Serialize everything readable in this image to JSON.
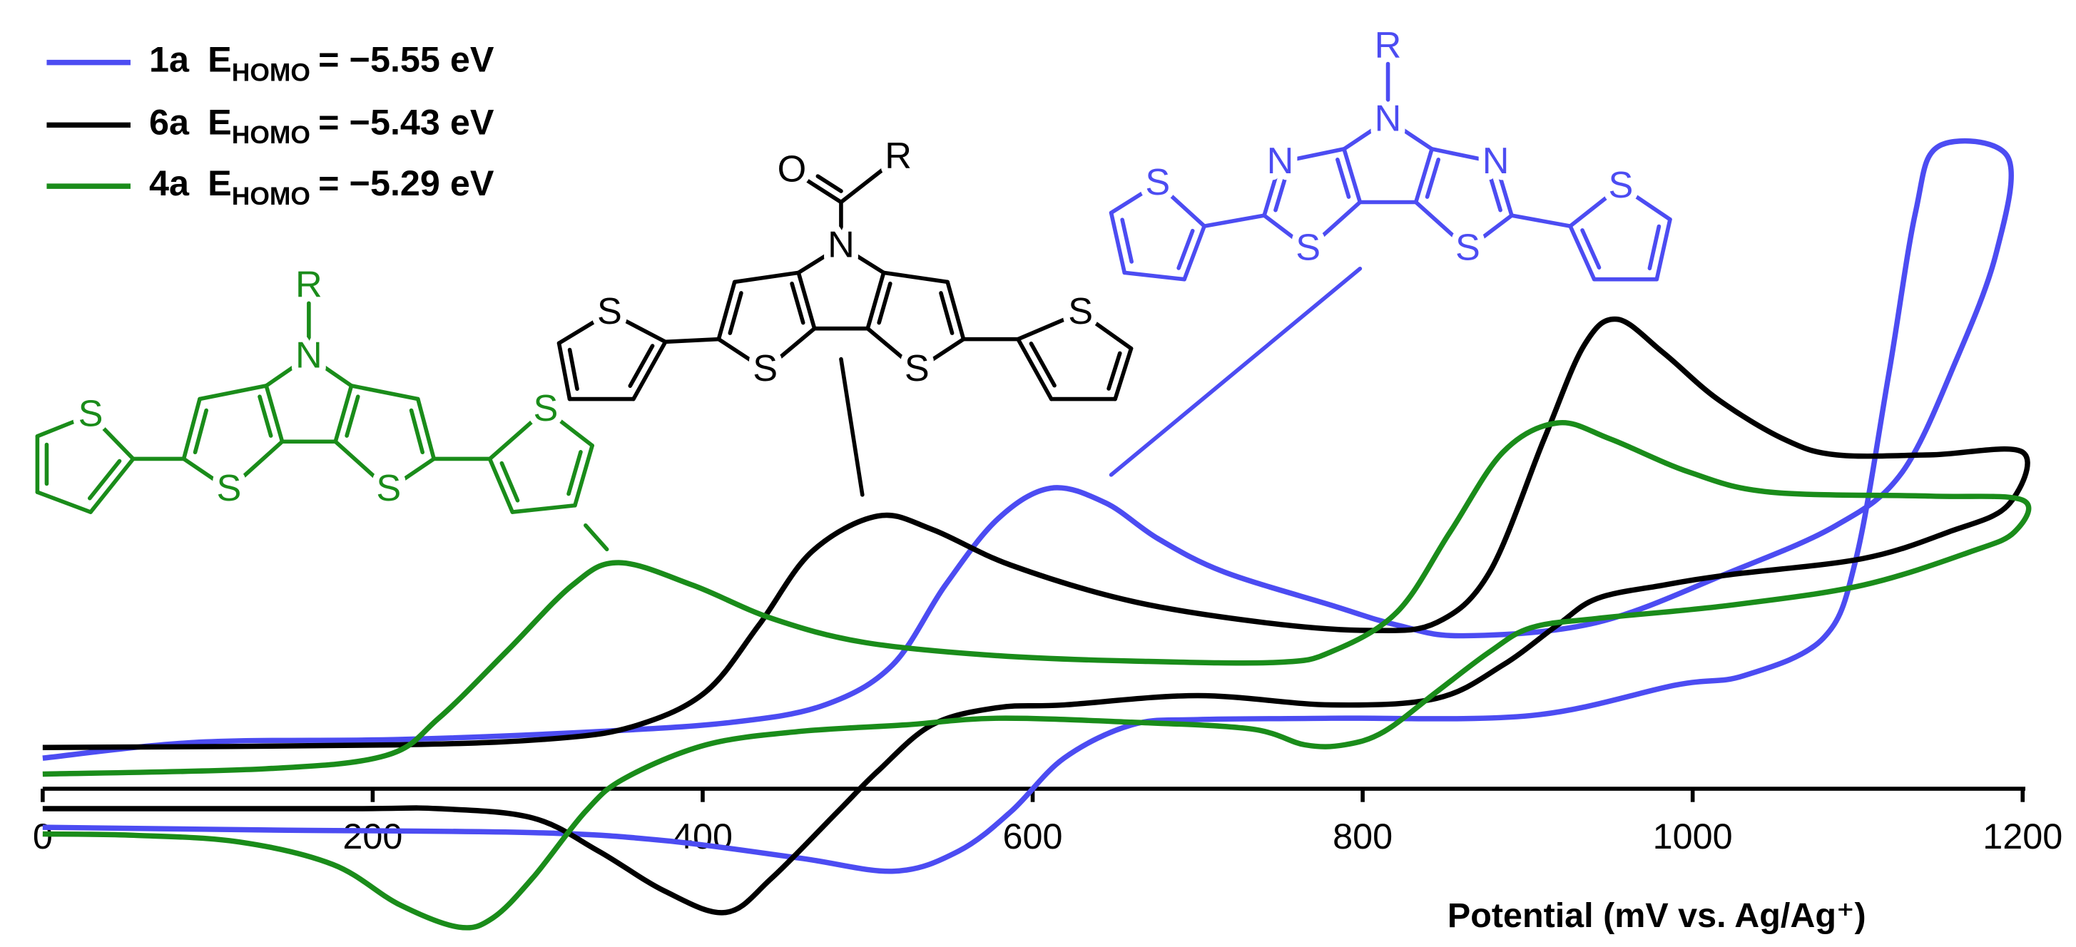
{
  "chart_data": {
    "type": "line",
    "x_label": "Potential (mV vs. Ag/Ag⁺)",
    "legend_symbol": "E",
    "legend_subscript": "HOMO",
    "legend_position": "upper left",
    "xlim": [
      0,
      1200
    ],
    "xticks": [
      0,
      200,
      400,
      600,
      800,
      1000,
      1200
    ],
    "ylim": [
      -120,
      490
    ],
    "series": [
      {
        "name": "1a",
        "energy_label": "= −5.55 eV",
        "color": "#4c4cf2",
        "x": [
          0,
          95,
          216,
          337,
          418,
          474,
          515,
          547,
          579,
          611,
          644,
          676,
          716,
          781,
          821,
          861,
          942,
          1023,
          1087,
          1127,
          1160,
          1184,
          1191,
          1149,
          1135,
          1119,
          1099,
          1079,
          1031,
          990,
          902,
          781,
          700,
          660,
          619,
          587,
          555,
          516,
          458,
          377,
          297,
          135,
          0
        ],
        "values": [
          23,
          35,
          37,
          43,
          50,
          63,
          93,
          153,
          203,
          226,
          215,
          188,
          163,
          138,
          123,
          115,
          125,
          163,
          198,
          238,
          323,
          403,
          475,
          483,
          433,
          313,
          173,
          113,
          85,
          78,
          55,
          53,
          52,
          48,
          23,
          -17,
          -47,
          -62,
          -52,
          -39,
          -33,
          -31,
          -29
        ]
      },
      {
        "name": "6a",
        "energy_label": "= −5.43 eV",
        "color": "#000000",
        "x": [
          0,
          216,
          313,
          361,
          402,
          434,
          466,
          506,
          539,
          587,
          660,
          740,
          805,
          845,
          877,
          910,
          934,
          954,
          982,
          1015,
          1055,
          1087,
          1144,
          1200,
          1191,
          1155,
          1103,
          1023,
          982,
          942,
          918,
          885,
          845,
          781,
          700,
          619,
          579,
          539,
          506,
          482,
          442,
          414,
          377,
          337,
          297,
          240,
          184,
          0
        ],
        "values": [
          31,
          33,
          38,
          48,
          73,
          123,
          178,
          205,
          195,
          168,
          141,
          125,
          119,
          125,
          163,
          263,
          333,
          353,
          328,
          293,
          263,
          251,
          251,
          253,
          213,
          193,
          173,
          161,
          153,
          143,
          123,
          93,
          68,
          63,
          70,
          63,
          61,
          48,
          13,
          -17,
          -67,
          -93,
          -77,
          -47,
          -22,
          -15,
          -15,
          -15
        ]
      },
      {
        "name": "4a",
        "energy_label": "= −5.29 eV",
        "color": "#1a8c1a",
        "x": [
          0,
          135,
          208,
          240,
          281,
          321,
          349,
          394,
          442,
          498,
          579,
          660,
          748,
          781,
          821,
          853,
          885,
          918,
          950,
          998,
          1047,
          1144,
          1200,
          1195,
          1168,
          1103,
          1023,
          942,
          902,
          877,
          845,
          813,
          789,
          765,
          732,
          660,
          579,
          523,
          458,
          402,
          353,
          329,
          297,
          273,
          252,
          216,
          176,
          119,
          55,
          0
        ],
        "values": [
          11,
          15,
          25,
          53,
          103,
          153,
          170,
          153,
          128,
          110,
          100,
          96,
          95,
          103,
          133,
          193,
          253,
          275,
          263,
          238,
          223,
          220,
          217,
          193,
          178,
          153,
          138,
          128,
          121,
          103,
          73,
          43,
          33,
          33,
          45,
          50,
          53,
          48,
          43,
          33,
          8,
          -17,
          -67,
          -97,
          -104,
          -87,
          -57,
          -40,
          -35,
          -34
        ]
      }
    ]
  },
  "structures": [
    {
      "color": "#1a8c1a",
      "labels": [
        "R",
        "N",
        "S",
        "S",
        "S",
        "S"
      ]
    },
    {
      "color": "#000000",
      "labels": [
        "O",
        "R",
        "N",
        "S",
        "S",
        "S",
        "S"
      ]
    },
    {
      "color": "#4c4cf2",
      "labels": [
        "R",
        "N",
        "N",
        "N",
        "S",
        "S",
        "S",
        "S"
      ]
    }
  ]
}
